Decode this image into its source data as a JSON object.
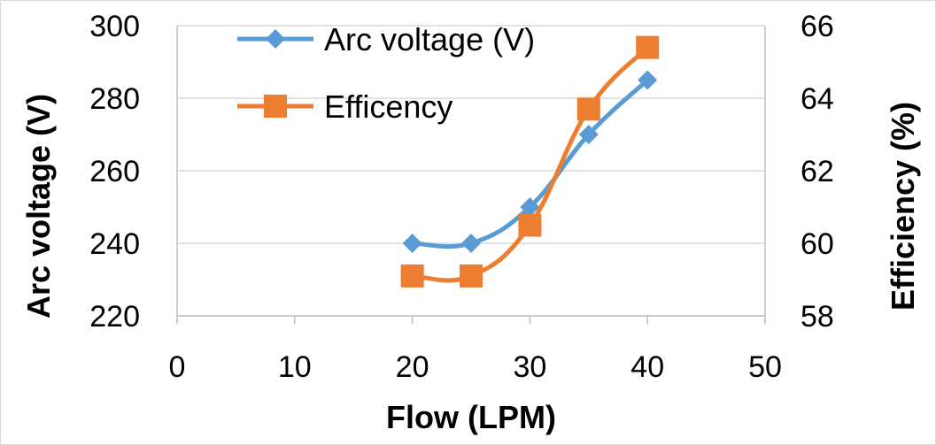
{
  "chart_data": {
    "type": "line",
    "xlabel": "Flow (LPM)",
    "ylabel_left": "Arc voltage (V)",
    "ylabel_right": "Efficiency (%)",
    "xlim": [
      0,
      50
    ],
    "ylim_left": [
      220,
      300
    ],
    "ylim_right": [
      58,
      66
    ],
    "x_ticks": [
      0,
      10,
      20,
      30,
      40,
      50
    ],
    "y_left_ticks": [
      220,
      240,
      260,
      280,
      300
    ],
    "y_right_ticks": [
      58,
      60,
      62,
      64,
      66
    ],
    "grid": "horizontal",
    "legend_position": "top-left",
    "series": [
      {
        "name": "Arc voltage (V)",
        "axis": "left",
        "color": "#5B9BD5",
        "marker": "diamond",
        "smooth": true,
        "x": [
          20,
          25,
          30,
          35,
          40
        ],
        "y": [
          240,
          240,
          250,
          270,
          285
        ]
      },
      {
        "name": "Efficency",
        "axis": "right",
        "color": "#ED7D31",
        "marker": "square",
        "smooth": true,
        "x": [
          20,
          25,
          30,
          35,
          40
        ],
        "y": [
          59.1,
          59.1,
          60.5,
          63.7,
          65.4
        ]
      }
    ]
  }
}
